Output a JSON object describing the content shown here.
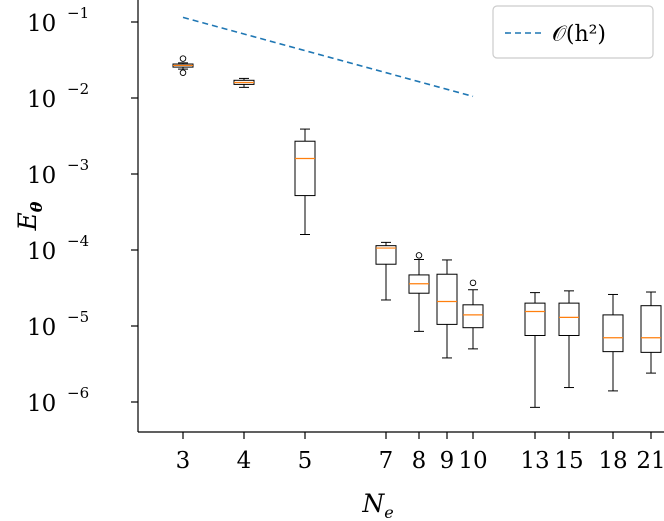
{
  "chart_data": {
    "type": "box",
    "xlabel": "N_e",
    "ylabel": "E_θ",
    "yscale": "log",
    "ylim": [
      5e-07,
      0.2
    ],
    "xticks": [
      3,
      4,
      5,
      7,
      8,
      9,
      10,
      13,
      15,
      18,
      21
    ],
    "yticks": [
      {
        "value": 1e-06,
        "label": "10",
        "exp": "−6"
      },
      {
        "value": 1e-05,
        "label": "10",
        "exp": "−5"
      },
      {
        "value": 0.0001,
        "label": "10",
        "exp": "−4"
      },
      {
        "value": 0.001,
        "label": "10",
        "exp": "−3"
      },
      {
        "value": 0.01,
        "label": "10",
        "exp": "−2"
      },
      {
        "value": 0.1,
        "label": "10",
        "exp": "−1"
      }
    ],
    "boxes": [
      {
        "x": 3,
        "whislo": 0.024,
        "q1": 0.0255,
        "med": 0.0268,
        "q3": 0.028,
        "whishi": 0.029,
        "fliers": [
          0.0215,
          0.033
        ]
      },
      {
        "x": 4,
        "whislo": 0.0138,
        "q1": 0.0151,
        "med": 0.016,
        "q3": 0.0171,
        "whishi": 0.0181,
        "fliers": []
      },
      {
        "x": 5,
        "whislo": 0.00016,
        "q1": 0.00052,
        "med": 0.0016,
        "q3": 0.0027,
        "whishi": 0.0039,
        "fliers": []
      },
      {
        "x": 7,
        "whislo": 2.2e-05,
        "q1": 6.5e-05,
        "med": 0.000106,
        "q3": 0.000114,
        "whishi": 0.000126,
        "fliers": []
      },
      {
        "x": 8,
        "whislo": 8.5e-06,
        "q1": 2.7e-05,
        "med": 3.6e-05,
        "q3": 4.7e-05,
        "whishi": 7.5e-05,
        "fliers": [
          8.5e-05
        ]
      },
      {
        "x": 9,
        "whislo": 3.8e-06,
        "q1": 1.05e-05,
        "med": 2.1e-05,
        "q3": 4.8e-05,
        "whishi": 7.4e-05,
        "fliers": []
      },
      {
        "x": 10,
        "whislo": 5e-06,
        "q1": 9.5e-06,
        "med": 1.4e-05,
        "q3": 1.9e-05,
        "whishi": 3e-05,
        "fliers": [
          3.7e-05
        ]
      },
      {
        "x": 13,
        "whislo": 8.5e-07,
        "q1": 7.5e-06,
        "med": 1.55e-05,
        "q3": 2e-05,
        "whishi": 2.75e-05,
        "fliers": []
      },
      {
        "x": 15,
        "whislo": 1.55e-06,
        "q1": 7.5e-06,
        "med": 1.3e-05,
        "q3": 2e-05,
        "whishi": 2.9e-05,
        "fliers": []
      },
      {
        "x": 18,
        "whislo": 1.4e-06,
        "q1": 4.6e-06,
        "med": 7e-06,
        "q3": 1.4e-05,
        "whishi": 2.6e-05,
        "fliers": []
      },
      {
        "x": 21,
        "whislo": 2.4e-06,
        "q1": 4.5e-06,
        "med": 7e-06,
        "q3": 1.85e-05,
        "whishi": 2.8e-05,
        "fliers": []
      }
    ],
    "reference_line": {
      "name": "𝒪(h²)",
      "x": [
        3,
        10
      ],
      "y": [
        0.115,
        0.0105
      ],
      "color": "#1f77b4",
      "style": "dashed"
    },
    "legend": {
      "position": "top-right",
      "entries": [
        "𝒪(h²)"
      ]
    },
    "colors": {
      "median": "#ff7f0e",
      "box": "#000000",
      "reference": "#1f77b4"
    }
  }
}
